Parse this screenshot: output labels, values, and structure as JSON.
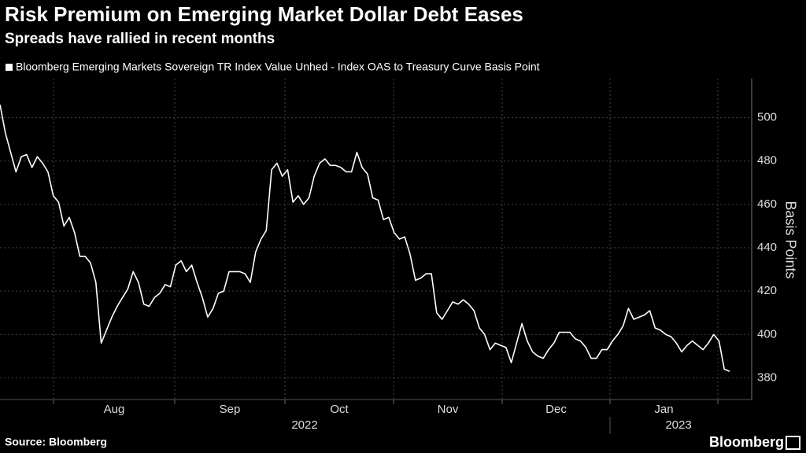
{
  "chart_data": {
    "type": "line",
    "title": "Risk Premium on Emerging Market Dollar Debt Eases",
    "subtitle": "Spreads have rallied in recent months",
    "y_label": "Basis Points",
    "source": "Source: Bloomberg",
    "brand": "Bloomberg",
    "months": [
      "Aug",
      "Sep",
      "Oct",
      "Nov",
      "Dec",
      "Jan"
    ],
    "years": [
      "2022",
      "2023"
    ],
    "ylim": [
      370,
      518
    ],
    "yticks": [
      380,
      400,
      420,
      440,
      460,
      480,
      500
    ],
    "grid": true,
    "series": [
      {
        "name": "Bloomberg Emerging Markets Sovereign TR Index Value Unhed - Index OAS to Treasury Curve Basis Point",
        "color": "#ffffff",
        "values": [
          506,
          493,
          484,
          475,
          482,
          483,
          477,
          482,
          479,
          475,
          464,
          461,
          450,
          454,
          447,
          436,
          436,
          433,
          424,
          396,
          402,
          408,
          413,
          417,
          421,
          429,
          424,
          414,
          413,
          417,
          419,
          423,
          422,
          432,
          434,
          429,
          432,
          424,
          417,
          408,
          412,
          419,
          420,
          429,
          429,
          429,
          428,
          424,
          438,
          444,
          448,
          476,
          479,
          473,
          476,
          461,
          464,
          460,
          463,
          473,
          479,
          481,
          478,
          478,
          477,
          475,
          475,
          484,
          477,
          474,
          463,
          462,
          453,
          454,
          447,
          444,
          445,
          437,
          425,
          426,
          428,
          428,
          410,
          407,
          411,
          415,
          414,
          416,
          414,
          411,
          403,
          400,
          393,
          396,
          395,
          394,
          387,
          396,
          405,
          397,
          392,
          390,
          389,
          393,
          396,
          401,
          401,
          401,
          398,
          397,
          394,
          389,
          389,
          393,
          393,
          397,
          400,
          404,
          412,
          407,
          408,
          409,
          411,
          403,
          402,
          400,
          399,
          396,
          392,
          395,
          397,
          395,
          393,
          396,
          400,
          397,
          384,
          383
        ]
      }
    ]
  }
}
